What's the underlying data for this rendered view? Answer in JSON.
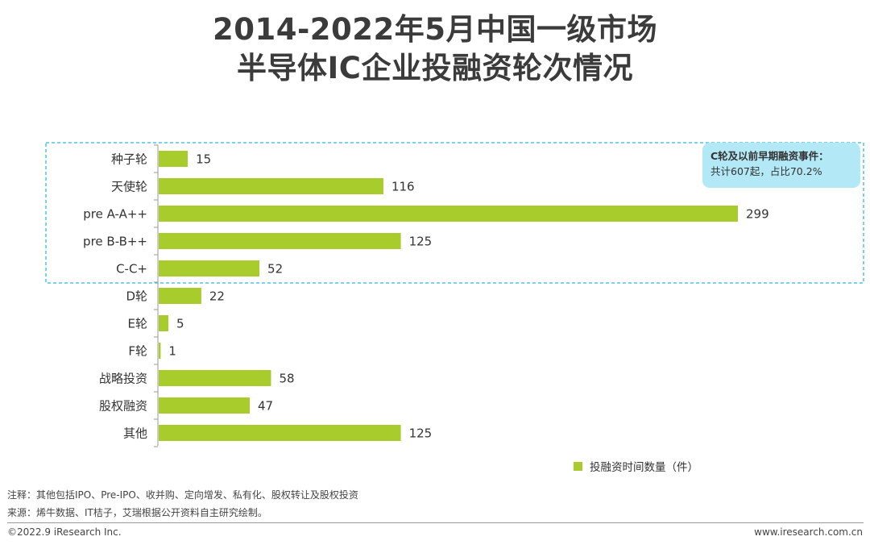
{
  "title": {
    "line1": "2014-2022年5月中国一级市场",
    "line2": "半导体IC企业投融资轮次情况"
  },
  "callout": {
    "line1": "C轮及以前早期融资事件：",
    "line2": "共计607起，占比70.2%"
  },
  "legend": {
    "label": "投融资时间数量（件）"
  },
  "note": "注释：其他包括IPO、Pre-IPO、收并购、定向增发、私有化、股权转让及股权投资",
  "source": "来源：烯牛数据、IT桔子，艾瑞根据公开资料自主研究绘制。",
  "footer": {
    "copyright": "©2022.9 iResearch Inc.",
    "website": "www.iresearch.com.cn"
  },
  "colors": {
    "bar": "#a8cc2c",
    "highlight_border": "#4cc6e6",
    "callout_bg": "#b3e9f7"
  },
  "chart_data": {
    "type": "bar",
    "orientation": "horizontal",
    "categories": [
      "种子轮",
      "天使轮",
      "pre A-A++",
      "pre B-B++",
      "C-C+",
      "D轮",
      "E轮",
      "F轮",
      "战略投资",
      "股权融资",
      "其他"
    ],
    "series": [
      {
        "name": "投融资时间数量（件）",
        "values": [
          15,
          116,
          299,
          125,
          52,
          22,
          5,
          1,
          58,
          47,
          125
        ]
      }
    ],
    "xlim": [
      0,
      299
    ],
    "grid": false,
    "legend_position": "bottom-right",
    "highlight_categories": [
      "种子轮",
      "天使轮",
      "pre A-A++",
      "pre B-B++",
      "C-C+"
    ]
  }
}
